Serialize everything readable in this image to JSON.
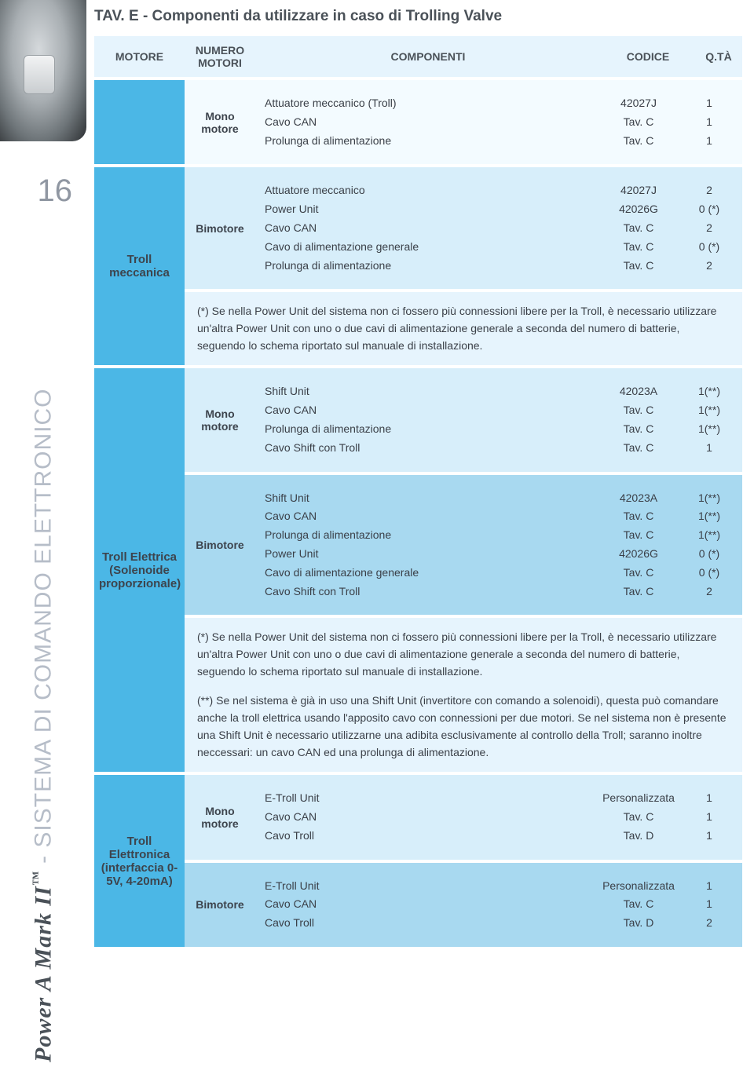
{
  "page_number": "16",
  "vertical": {
    "brand": "Power A Mark II",
    "tm": "™",
    "rest": " - SISTEMA DI COMANDO ELETTRONICO"
  },
  "tav_title": "TAV. E - Componenti da utilizzare in caso di Trolling Valve",
  "columns": {
    "motore": "MOTORE",
    "numero": "NUMERO MOTORI",
    "componenti": "COMPONENTI",
    "codice": "CODICE",
    "qta": "Q.TÀ"
  },
  "groups": [
    {
      "motore_label": "",
      "blocks": [
        {
          "num_label": "Mono motore",
          "bg": "vlight",
          "rows": [
            {
              "comp": "Attuatore meccanico (Troll)",
              "cod": "42027J",
              "qta": "1"
            },
            {
              "comp": "Cavo CAN",
              "cod": "Tav. C",
              "qta": "1"
            },
            {
              "comp": "Prolunga di alimentazione",
              "cod": "Tav. C",
              "qta": "1"
            }
          ]
        }
      ]
    },
    {
      "motore_label": "Troll meccanica",
      "blocks": [
        {
          "num_label": "Bimotore",
          "bg": "light",
          "rows": [
            {
              "comp": "Attuatore meccanico",
              "cod": "42027J",
              "qta": "2"
            },
            {
              "comp": "Power Unit",
              "cod": "42026G",
              "qta": "0 (*)"
            },
            {
              "comp": "Cavo CAN",
              "cod": "Tav. C",
              "qta": "2"
            },
            {
              "comp": "Cavo di alimentazione generale",
              "cod": "Tav. C",
              "qta": "0 (*)"
            },
            {
              "comp": "Prolunga di alimentazione",
              "cod": "Tav. C",
              "qta": "2"
            }
          ]
        }
      ],
      "notes": [
        "(*) Se nella Power Unit del sistema non ci fossero più connessioni libere per la Troll, è necessario utilizzare un'altra Power Unit con uno o due cavi di alimentazione generale a seconda del numero di batterie, seguendo lo schema riportato sul manuale di installazione."
      ]
    },
    {
      "motore_label": "Troll Elettrica (Solenoide proporzionale)",
      "blocks": [
        {
          "num_label": "Mono motore",
          "bg": "light",
          "rows": [
            {
              "comp": "Shift Unit",
              "cod": "42023A",
              "qta": "1(**)"
            },
            {
              "comp": "Cavo CAN",
              "cod": "Tav. C",
              "qta": "1(**)"
            },
            {
              "comp": "Prolunga di alimentazione",
              "cod": "Tav. C",
              "qta": "1(**)"
            },
            {
              "comp": "Cavo Shift con Troll",
              "cod": "Tav. C",
              "qta": "1"
            }
          ]
        },
        {
          "num_label": "Bimotore",
          "bg": "med",
          "rows": [
            {
              "comp": "Shift Unit",
              "cod": "42023A",
              "qta": "1(**)"
            },
            {
              "comp": "Cavo CAN",
              "cod": "Tav. C",
              "qta": "1(**)"
            },
            {
              "comp": "Prolunga di alimentazione",
              "cod": "Tav. C",
              "qta": "1(**)"
            },
            {
              "comp": "Power Unit",
              "cod": "42026G",
              "qta": "0 (*)"
            },
            {
              "comp": "Cavo di alimentazione generale",
              "cod": "Tav. C",
              "qta": "0 (*)"
            },
            {
              "comp": "Cavo Shift con Troll",
              "cod": "Tav. C",
              "qta": "2"
            }
          ]
        }
      ],
      "notes": [
        "(*) Se nella Power Unit del sistema non ci fossero più connessioni libere per la Troll, è necessario utilizzare un'altra Power Unit con uno o due cavi di alimentazione generale a seconda del numero di batterie, seguendo lo schema riportato sul manuale di installazione.",
        "(**) Se nel sistema è già in uso una Shift Unit (invertitore con comando a solenoidi), questa può comandare anche la troll elettrica usando l'apposito cavo con connessioni per due motori. Se nel sistema non è presente una Shift Unit è necessario utilizzarne una adibita esclusivamente al controllo della Troll; saranno inoltre neccessari: un cavo CAN ed una prolunga di alimentazione."
      ]
    },
    {
      "motore_label": "Troll Elettronica (interfaccia 0-5V, 4-20mA)",
      "blocks": [
        {
          "num_label": "Mono motore",
          "bg": "light",
          "rows": [
            {
              "comp": "E-Troll Unit",
              "cod": "Personalizzata",
              "qta": "1"
            },
            {
              "comp": "Cavo CAN",
              "cod": "Tav. C",
              "qta": "1"
            },
            {
              "comp": "Cavo Troll",
              "cod": "Tav. D",
              "qta": "1"
            }
          ]
        },
        {
          "num_label": "Bimotore",
          "bg": "med",
          "rows": [
            {
              "comp": "E-Troll Unit",
              "cod": "Personalizzata",
              "qta": "1"
            },
            {
              "comp": "Cavo CAN",
              "cod": "Tav. C",
              "qta": "1"
            },
            {
              "comp": "Cavo Troll",
              "cod": "Tav. D",
              "qta": "2"
            }
          ]
        }
      ]
    }
  ]
}
